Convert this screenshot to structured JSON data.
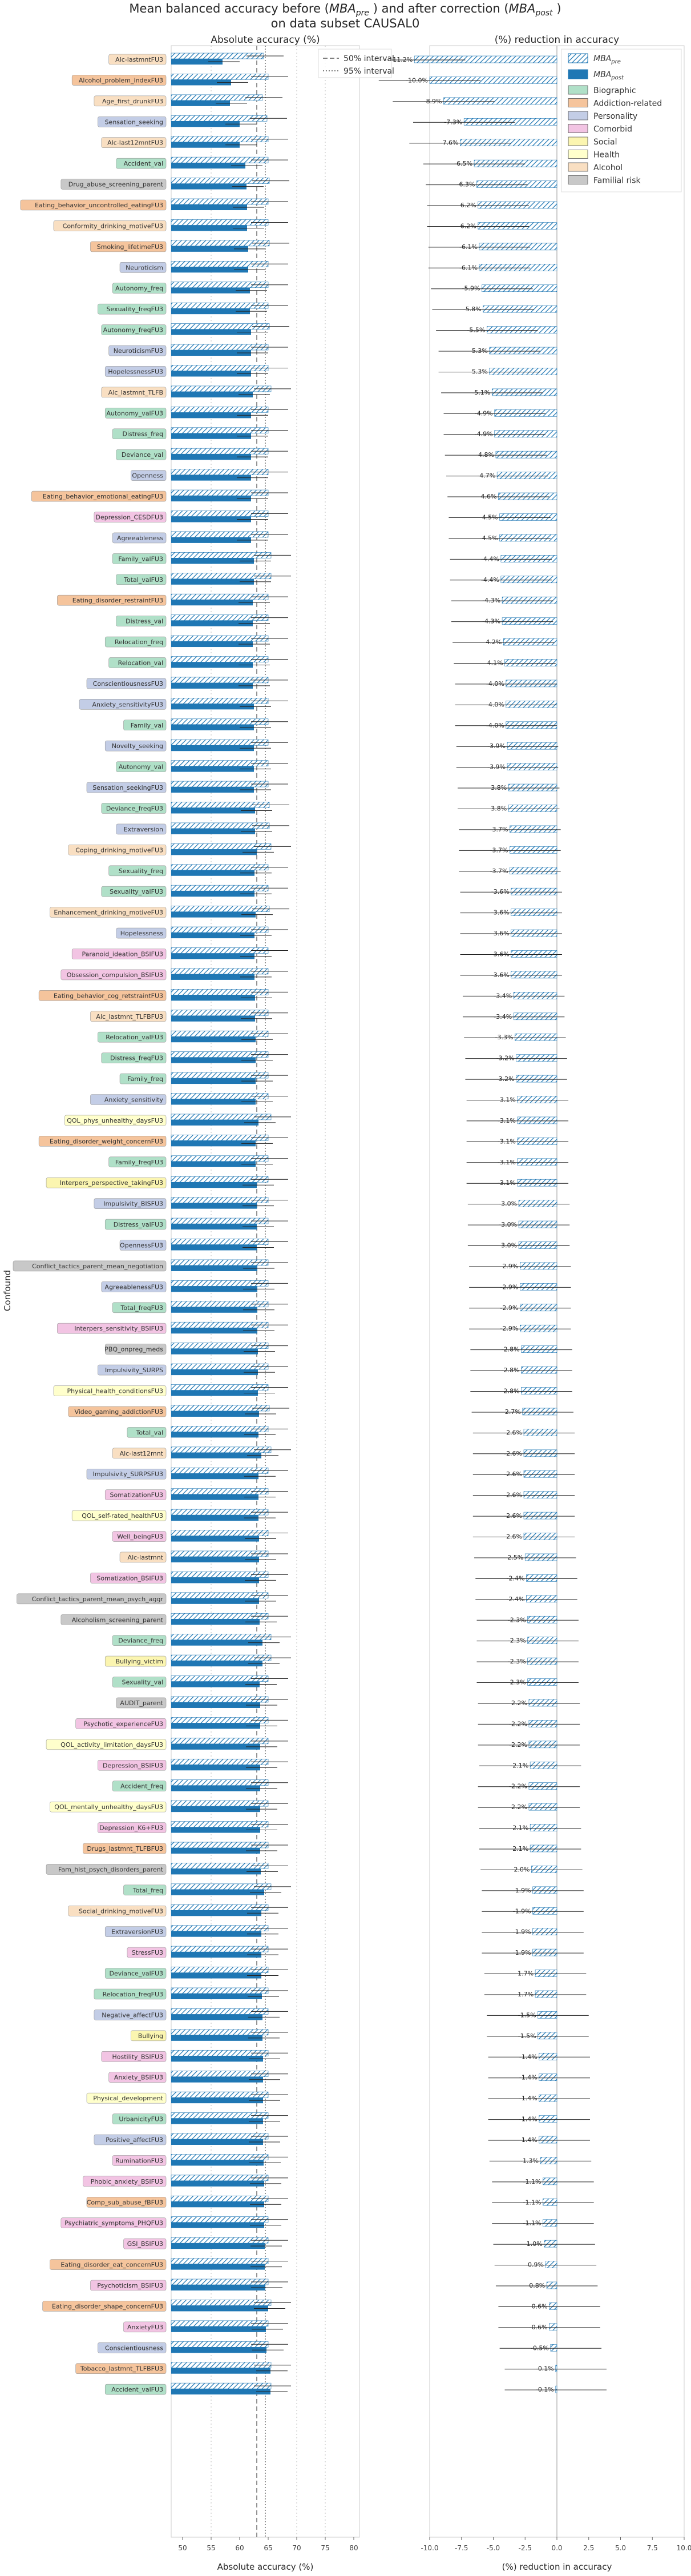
{
  "title_line1_a": "Mean balanced accuracy before (",
  "title_line1_pre": "MBA",
  "title_line1_pre_sub": "pre",
  "title_line1_b": ") and after correction (",
  "title_line1_post": "MBA",
  "title_line1_post_sub": "post",
  "title_line1_c": ")",
  "title_line2": "on data subset CAUSAL0",
  "y_axis_label": "Confound",
  "left_panel": {
    "title": "Absolute accuracy (%)",
    "xlabel": "Absolute accuracy (%)",
    "xticks": [
      "50",
      "55",
      "60",
      "65",
      "70",
      "75",
      "80"
    ],
    "ref_legend": [
      "50% interval",
      "95% interval"
    ]
  },
  "right_panel": {
    "title": "(%) reduction in accuracy",
    "xlabel": "(%) reduction in accuracy",
    "xticks": [
      "-10.0",
      "-7.5",
      "-5.0",
      "-2.5",
      "0.0",
      "2.5",
      "5.0",
      "7.5",
      "10.0"
    ]
  },
  "legend": {
    "pre_main": "MBA",
    "pre_sub": "pre",
    "post_main": "MBA",
    "post_sub": "post",
    "categories": [
      "Biographic",
      "Addiction-related",
      "Personality",
      "Comorbid",
      "Social",
      "Health",
      "Alcohol",
      "Familial risk"
    ]
  },
  "colors": {
    "pre_hatch": "#1f77b4",
    "post_fill": "#1f77b4",
    "Biographic": "#b0e0c8",
    "Addiction-related": "#f5c49c",
    "Personality": "#c3cde6",
    "Comorbid": "#f2c4e3",
    "Social": "#fbf5b0",
    "Health": "#ffffcc",
    "Alcohol": "#f9dfc2",
    "Familial risk": "#c8c8c8"
  },
  "chart_data": {
    "type": "bar",
    "ref_lines": {
      "interval_50": 63,
      "interval_95": 64.5
    },
    "left_xlim": [
      48,
      81
    ],
    "right_xlim": [
      -10,
      10
    ],
    "rows": [
      {
        "label": "Alc-lastmntFU3",
        "cat": "Alcohol",
        "pre": 64.2,
        "post": 57.0,
        "red": "-11.2%"
      },
      {
        "label": "Alcohol_problem_indexFU3",
        "cat": "Addiction-related",
        "pre": 65.0,
        "post": 58.5,
        "red": "-10.0%"
      },
      {
        "label": "Age_first_drunkFU3",
        "cat": "Alcohol",
        "pre": 64.0,
        "post": 58.3,
        "red": "-8.9%"
      },
      {
        "label": "Sensation_seeking",
        "cat": "Personality",
        "pre": 64.8,
        "post": 60.0,
        "red": "-7.3%"
      },
      {
        "label": "Alc-last12mntFU3",
        "cat": "Alcohol",
        "pre": 65.0,
        "post": 60.0,
        "red": "-7.6%"
      },
      {
        "label": "Accident_val",
        "cat": "Biographic",
        "pre": 65.0,
        "post": 61.0,
        "red": "-6.5%"
      },
      {
        "label": "Drug_abuse_screening_parent",
        "cat": "Familial risk",
        "pre": 65.2,
        "post": 61.2,
        "red": "-6.3%"
      },
      {
        "label": "Eating_behavior_uncontrolled_eatingFU3",
        "cat": "Addiction-related",
        "pre": 65.0,
        "post": 61.3,
        "red": "-6.2%"
      },
      {
        "label": "Conformity_drinking_motiveFU3",
        "cat": "Alcohol",
        "pre": 65.0,
        "post": 61.3,
        "red": "-6.2%"
      },
      {
        "label": "Smoking_lifetimeFU3",
        "cat": "Addiction-related",
        "pre": 65.2,
        "post": 61.5,
        "red": "-6.1%"
      },
      {
        "label": "Neuroticism",
        "cat": "Personality",
        "pre": 65.0,
        "post": 61.5,
        "red": "-6.1%"
      },
      {
        "label": "Autonomy_freq",
        "cat": "Biographic",
        "pre": 65.0,
        "post": 61.8,
        "red": "-5.9%"
      },
      {
        "label": "Sexuality_freqFU3",
        "cat": "Biographic",
        "pre": 65.0,
        "post": 61.8,
        "red": "-5.8%"
      },
      {
        "label": "Autonomy_freqFU3",
        "cat": "Biographic",
        "pre": 65.2,
        "post": 62.0,
        "red": "-5.5%"
      },
      {
        "label": "NeuroticismFU3",
        "cat": "Personality",
        "pre": 65.0,
        "post": 62.0,
        "red": "-5.3%"
      },
      {
        "label": "HopelessnessFU3",
        "cat": "Personality",
        "pre": 65.0,
        "post": 62.0,
        "red": "-5.3%"
      },
      {
        "label": "Alc_lastmnt_TLFB",
        "cat": "Alcohol",
        "pre": 65.5,
        "post": 62.3,
        "red": "-5.1%"
      },
      {
        "label": "Autonomy_valFU3",
        "cat": "Biographic",
        "pre": 65.0,
        "post": 62.0,
        "red": "-4.9%"
      },
      {
        "label": "Distress_freq",
        "cat": "Biographic",
        "pre": 65.0,
        "post": 62.0,
        "red": "-4.9%"
      },
      {
        "label": "Deviance_val",
        "cat": "Biographic",
        "pre": 65.0,
        "post": 62.0,
        "red": "-4.8%"
      },
      {
        "label": "Openness",
        "cat": "Personality",
        "pre": 65.0,
        "post": 62.0,
        "red": "-4.7%"
      },
      {
        "label": "Eating_behavior_emotional_eatingFU3",
        "cat": "Addiction-related",
        "pre": 65.0,
        "post": 62.0,
        "red": "-4.6%"
      },
      {
        "label": "Depression_CESDFU3",
        "cat": "Comorbid",
        "pre": 65.0,
        "post": 62.0,
        "red": "-4.5%"
      },
      {
        "label": "Agreeableness",
        "cat": "Personality",
        "pre": 65.0,
        "post": 62.0,
        "red": "-4.5%"
      },
      {
        "label": "Family_valFU3",
        "cat": "Biographic",
        "pre": 65.5,
        "post": 62.5,
        "red": "-4.4%"
      },
      {
        "label": "Total_valFU3",
        "cat": "Biographic",
        "pre": 65.5,
        "post": 62.5,
        "red": "-4.4%"
      },
      {
        "label": "Eating_disorder_restraintFU3",
        "cat": "Addiction-related",
        "pre": 65.0,
        "post": 62.3,
        "red": "-4.3%"
      },
      {
        "label": "Distress_val",
        "cat": "Biographic",
        "pre": 65.0,
        "post": 62.3,
        "red": "-4.3%"
      },
      {
        "label": "Relocation_freq",
        "cat": "Biographic",
        "pre": 65.0,
        "post": 62.3,
        "red": "-4.2%"
      },
      {
        "label": "Relocation_val",
        "cat": "Biographic",
        "pre": 65.0,
        "post": 62.3,
        "red": "-4.1%"
      },
      {
        "label": "ConscientiousnessFU3",
        "cat": "Personality",
        "pre": 65.0,
        "post": 62.3,
        "red": "-4.0%"
      },
      {
        "label": "Anxiety_sensitivityFU3",
        "cat": "Personality",
        "pre": 65.0,
        "post": 62.5,
        "red": "-4.0%"
      },
      {
        "label": "Family_val",
        "cat": "Biographic",
        "pre": 65.0,
        "post": 62.5,
        "red": "-4.0%"
      },
      {
        "label": "Novelty_seeking",
        "cat": "Personality",
        "pre": 65.0,
        "post": 62.5,
        "red": "-3.9%"
      },
      {
        "label": "Autonomy_val",
        "cat": "Biographic",
        "pre": 65.0,
        "post": 62.5,
        "red": "-3.9%"
      },
      {
        "label": "Sensation_seekingFU3",
        "cat": "Personality",
        "pre": 65.0,
        "post": 62.5,
        "red": "-3.8%"
      },
      {
        "label": "Deviance_freqFU3",
        "cat": "Biographic",
        "pre": 65.2,
        "post": 62.7,
        "red": "-3.8%"
      },
      {
        "label": "Extraversion",
        "cat": "Personality",
        "pre": 65.2,
        "post": 62.7,
        "red": "-3.7%"
      },
      {
        "label": "Coping_drinking_motiveFU3",
        "cat": "Alcohol",
        "pre": 65.5,
        "post": 63.0,
        "red": "-3.7%"
      },
      {
        "label": "Sexuality_freq",
        "cat": "Biographic",
        "pre": 65.0,
        "post": 62.6,
        "red": "-3.7%"
      },
      {
        "label": "Sexuality_valFU3",
        "cat": "Biographic",
        "pre": 65.0,
        "post": 62.6,
        "red": "-3.6%"
      },
      {
        "label": "Enhancement_drinking_motiveFU3",
        "cat": "Alcohol",
        "pre": 65.2,
        "post": 62.8,
        "red": "-3.6%"
      },
      {
        "label": "Hopelessness",
        "cat": "Personality",
        "pre": 65.0,
        "post": 62.6,
        "red": "-3.6%"
      },
      {
        "label": "Paranoid_ideation_BSIFU3",
        "cat": "Comorbid",
        "pre": 65.0,
        "post": 62.6,
        "red": "-3.6%"
      },
      {
        "label": "Obsession_compulsion_BSIFU3",
        "cat": "Comorbid",
        "pre": 65.0,
        "post": 62.6,
        "red": "-3.6%"
      },
      {
        "label": "Eating_behavior_cog_retstraintFU3",
        "cat": "Addiction-related",
        "pre": 65.0,
        "post": 62.7,
        "red": "-3.4%"
      },
      {
        "label": "Alc_lastmnt_TLFBFU3",
        "cat": "Alcohol",
        "pre": 65.0,
        "post": 62.7,
        "red": "-3.4%"
      },
      {
        "label": "Relocation_valFU3",
        "cat": "Biographic",
        "pre": 65.0,
        "post": 62.8,
        "red": "-3.3%"
      },
      {
        "label": "Distress_freqFU3",
        "cat": "Biographic",
        "pre": 65.0,
        "post": 62.8,
        "red": "-3.2%"
      },
      {
        "label": "Family_freq",
        "cat": "Biographic",
        "pre": 65.0,
        "post": 62.8,
        "red": "-3.2%"
      },
      {
        "label": "Anxiety_sensitivity",
        "cat": "Personality",
        "pre": 65.0,
        "post": 62.8,
        "red": "-3.1%"
      },
      {
        "label": "QOL_phys_unhealthy_daysFU3",
        "cat": "Health",
        "pre": 65.5,
        "post": 63.3,
        "red": "-3.1%"
      },
      {
        "label": "Eating_disorder_weight_concernFU3",
        "cat": "Addiction-related",
        "pre": 65.0,
        "post": 62.8,
        "red": "-3.1%"
      },
      {
        "label": "Family_freqFU3",
        "cat": "Biographic",
        "pre": 65.0,
        "post": 62.8,
        "red": "-3.1%"
      },
      {
        "label": "Interpers_perspective_takingFU3",
        "cat": "Social",
        "pre": 65.0,
        "post": 63.0,
        "red": "-3.1%"
      },
      {
        "label": "Impulsivity_BISFU3",
        "cat": "Personality",
        "pre": 65.0,
        "post": 63.0,
        "red": "-3.0%"
      },
      {
        "label": "Distress_valFU3",
        "cat": "Biographic",
        "pre": 65.0,
        "post": 63.0,
        "red": "-3.0%"
      },
      {
        "label": "OpennessFU3",
        "cat": "Personality",
        "pre": 65.0,
        "post": 63.0,
        "red": "-3.0%"
      },
      {
        "label": "Conflict_tactics_parent_mean_negotiation",
        "cat": "Familial risk",
        "pre": 65.0,
        "post": 63.1,
        "red": "-2.9%"
      },
      {
        "label": "AgreeablenessFU3",
        "cat": "Personality",
        "pre": 65.0,
        "post": 63.1,
        "red": "-2.9%"
      },
      {
        "label": "Total_freqFU3",
        "cat": "Biographic",
        "pre": 65.0,
        "post": 63.1,
        "red": "-2.9%"
      },
      {
        "label": "Interpers_sensitivity_BSIFU3",
        "cat": "Comorbid",
        "pre": 65.0,
        "post": 63.1,
        "red": "-2.9%"
      },
      {
        "label": "PBQ_onpreg_meds",
        "cat": "Familial risk",
        "pre": 65.0,
        "post": 63.2,
        "red": "-2.8%"
      },
      {
        "label": "Impulsivity_SURPS",
        "cat": "Personality",
        "pre": 65.0,
        "post": 63.2,
        "red": "-2.8%"
      },
      {
        "label": "Physical_health_conditionsFU3",
        "cat": "Health",
        "pre": 65.0,
        "post": 63.2,
        "red": "-2.8%"
      },
      {
        "label": "Video_gaming_addictionFU3",
        "cat": "Addiction-related",
        "pre": 65.2,
        "post": 63.4,
        "red": "-2.7%"
      },
      {
        "label": "Total_val",
        "cat": "Biographic",
        "pre": 65.0,
        "post": 63.3,
        "red": "-2.6%"
      },
      {
        "label": "Alc-last12mnt",
        "cat": "Alcohol",
        "pre": 65.5,
        "post": 63.8,
        "red": "-2.6%"
      },
      {
        "label": "Impulsivity_SURPSFU3",
        "cat": "Personality",
        "pre": 65.0,
        "post": 63.3,
        "red": "-2.6%"
      },
      {
        "label": "SomatizationFU3",
        "cat": "Comorbid",
        "pre": 65.0,
        "post": 63.3,
        "red": "-2.6%"
      },
      {
        "label": "QOL_self-rated_healthFU3",
        "cat": "Health",
        "pre": 65.0,
        "post": 63.3,
        "red": "-2.6%"
      },
      {
        "label": "Well_beingFU3",
        "cat": "Comorbid",
        "pre": 65.0,
        "post": 63.4,
        "red": "-2.6%"
      },
      {
        "label": "Alc-lastmnt",
        "cat": "Alcohol",
        "pre": 65.0,
        "post": 63.4,
        "red": "-2.5%"
      },
      {
        "label": "Somatization_BSIFU3",
        "cat": "Comorbid",
        "pre": 65.0,
        "post": 63.4,
        "red": "-2.4%"
      },
      {
        "label": "Conflict_tactics_parent_mean_psych_aggr",
        "cat": "Familial risk",
        "pre": 65.0,
        "post": 63.4,
        "red": "-2.4%"
      },
      {
        "label": "Alcoholism_screening_parent",
        "cat": "Familial risk",
        "pre": 65.0,
        "post": 63.5,
        "red": "-2.3%"
      },
      {
        "label": "Deviance_freq",
        "cat": "Biographic",
        "pre": 65.5,
        "post": 64.0,
        "red": "-2.3%"
      },
      {
        "label": "Bullying_victim",
        "cat": "Social",
        "pre": 65.5,
        "post": 64.0,
        "red": "-2.3%"
      },
      {
        "label": "Sexuality_val",
        "cat": "Biographic",
        "pre": 65.0,
        "post": 63.5,
        "red": "-2.3%"
      },
      {
        "label": "AUDIT_parent",
        "cat": "Familial risk",
        "pre": 65.0,
        "post": 63.6,
        "red": "-2.2%"
      },
      {
        "label": "Psychotic_experienceFU3",
        "cat": "Comorbid",
        "pre": 65.0,
        "post": 63.6,
        "red": "-2.2%"
      },
      {
        "label": "QOL_activity_limitation_daysFU3",
        "cat": "Health",
        "pre": 65.0,
        "post": 63.6,
        "red": "-2.2%"
      },
      {
        "label": "Depression_BSIFU3",
        "cat": "Comorbid",
        "pre": 65.0,
        "post": 63.6,
        "red": "-2.1%"
      },
      {
        "label": "Accident_freq",
        "cat": "Biographic",
        "pre": 65.0,
        "post": 63.6,
        "red": "-2.2%"
      },
      {
        "label": "QOL_mentally_unhealthy_daysFU3",
        "cat": "Health",
        "pre": 65.0,
        "post": 63.6,
        "red": "-2.2%"
      },
      {
        "label": "Depression_K6+FU3",
        "cat": "Comorbid",
        "pre": 65.0,
        "post": 63.6,
        "red": "-2.1%"
      },
      {
        "label": "Drugs_lastmnt_TLFBFU3",
        "cat": "Addiction-related",
        "pre": 65.0,
        "post": 63.6,
        "red": "-2.1%"
      },
      {
        "label": "Fam_hist_psych_disorders_parent",
        "cat": "Familial risk",
        "pre": 65.0,
        "post": 63.7,
        "red": "-2.0%"
      },
      {
        "label": "Total_freq",
        "cat": "Biographic",
        "pre": 65.5,
        "post": 64.3,
        "red": "-1.9%"
      },
      {
        "label": "Social_drinking_motiveFU3",
        "cat": "Alcohol",
        "pre": 65.0,
        "post": 63.8,
        "red": "-1.9%"
      },
      {
        "label": "ExtraversionFU3",
        "cat": "Personality",
        "pre": 65.0,
        "post": 63.8,
        "red": "-1.9%"
      },
      {
        "label": "StressFU3",
        "cat": "Comorbid",
        "pre": 65.0,
        "post": 63.8,
        "red": "-1.9%"
      },
      {
        "label": "Deviance_valFU3",
        "cat": "Biographic",
        "pre": 65.0,
        "post": 63.8,
        "red": "-1.7%"
      },
      {
        "label": "Relocation_freqFU3",
        "cat": "Biographic",
        "pre": 65.0,
        "post": 63.9,
        "red": "-1.7%"
      },
      {
        "label": "Negative_affectFU3",
        "cat": "Personality",
        "pre": 65.0,
        "post": 64.0,
        "red": "-1.5%"
      },
      {
        "label": "Bullying",
        "cat": "Social",
        "pre": 65.0,
        "post": 64.0,
        "red": "-1.5%"
      },
      {
        "label": "Hostility_BSIFU3",
        "cat": "Comorbid",
        "pre": 65.0,
        "post": 64.1,
        "red": "-1.4%"
      },
      {
        "label": "Anxiety_BSIFU3",
        "cat": "Comorbid",
        "pre": 65.0,
        "post": 64.1,
        "red": "-1.4%"
      },
      {
        "label": "Physical_development",
        "cat": "Health",
        "pre": 65.0,
        "post": 64.1,
        "red": "-1.4%"
      },
      {
        "label": "UrbanicityFU3",
        "cat": "Biographic",
        "pre": 65.0,
        "post": 64.1,
        "red": "-1.4%"
      },
      {
        "label": "Positive_affectFU3",
        "cat": "Personality",
        "pre": 65.0,
        "post": 64.1,
        "red": "-1.4%"
      },
      {
        "label": "RuminationFU3",
        "cat": "Comorbid",
        "pre": 65.0,
        "post": 64.2,
        "red": "-1.3%"
      },
      {
        "label": "Phobic_anxiety_BSIFU3",
        "cat": "Comorbid",
        "pre": 65.0,
        "post": 64.3,
        "red": "-1.1%"
      },
      {
        "label": "Comp_sub_abuse_fBFU3",
        "cat": "Addiction-related",
        "pre": 65.0,
        "post": 64.3,
        "red": "-1.1%"
      },
      {
        "label": "Psychiatric_symptoms_PHQFU3",
        "cat": "Comorbid",
        "pre": 65.0,
        "post": 64.3,
        "red": "-1.1%"
      },
      {
        "label": "GSI_BSIFU3",
        "cat": "Comorbid",
        "pre": 65.0,
        "post": 64.4,
        "red": "-1.0%"
      },
      {
        "label": "Eating_disorder_eat_concernFU3",
        "cat": "Addiction-related",
        "pre": 65.0,
        "post": 64.4,
        "red": "-0.9%"
      },
      {
        "label": "Psychoticism_BSIFU3",
        "cat": "Comorbid",
        "pre": 65.0,
        "post": 64.5,
        "red": "-0.8%"
      },
      {
        "label": "Eating_disorder_shape_concernFU3",
        "cat": "Addiction-related",
        "pre": 65.5,
        "post": 65.0,
        "red": "-0.6%"
      },
      {
        "label": "AnxietyFU3",
        "cat": "Comorbid",
        "pre": 65.0,
        "post": 64.6,
        "red": "-0.6%"
      },
      {
        "label": "Conscientiousness",
        "cat": "Personality",
        "pre": 65.0,
        "post": 64.7,
        "red": "-0.5%"
      },
      {
        "label": "Tobacco_lastmnt_TLFBFU3",
        "cat": "Addiction-related",
        "pre": 65.5,
        "post": 65.4,
        "red": "-0.1%"
      },
      {
        "label": "Accident_valFU3",
        "cat": "Biographic",
        "pre": 65.5,
        "post": 65.4,
        "red": "-0.1%"
      }
    ]
  }
}
